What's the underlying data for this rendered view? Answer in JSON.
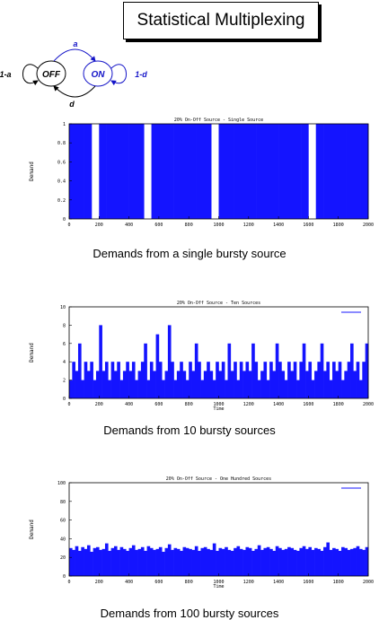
{
  "title": "Statistical Multiplexing",
  "markov": {
    "off_label": "OFF",
    "on_label": "ON",
    "a_label": "a",
    "d_label": "d",
    "self_off_label": "1-a",
    "self_on_label": "1-d",
    "colors": {
      "on_state": "#1414c8",
      "off_state": "#000000"
    }
  },
  "captions": [
    "Demands from a single bursty source",
    "Demands from 10 bursty sources",
    "Demands from 100 bursty sources"
  ],
  "chart_data": [
    {
      "type": "bar",
      "title": "20% On-Off Source - Single Source",
      "ylabel": "Demand",
      "xlabel": "",
      "xlim": [
        0,
        2000
      ],
      "ylim": [
        0,
        1
      ],
      "xticks": [
        "0",
        "200",
        "400",
        "600",
        "800",
        "1000",
        "1200",
        "1400",
        "1600",
        "1800",
        "2000"
      ],
      "yticks": [
        "0",
        "0.2",
        "0.4",
        "0.6",
        "0.8",
        "1"
      ],
      "color": "#1414ff",
      "values_description": "binary 0/1 demand per time slot; mostly 1",
      "values": [
        1,
        1,
        1,
        0,
        1,
        1,
        1,
        1,
        1,
        1,
        0,
        1,
        1,
        1,
        1,
        1,
        1,
        1,
        1,
        0,
        1,
        1,
        1,
        1,
        1,
        1,
        1,
        1,
        1,
        1,
        1,
        1,
        0,
        1,
        1,
        1,
        1,
        1,
        1,
        1
      ]
    },
    {
      "type": "bar",
      "title": "20% On-Off Source - Ten Sources",
      "ylabel": "Demand",
      "xlabel": "Time",
      "xlim": [
        0,
        2000
      ],
      "ylim": [
        0,
        10
      ],
      "xticks": [
        "0",
        "200",
        "400",
        "600",
        "800",
        "1000",
        "1200",
        "1400",
        "1600",
        "1800",
        "2000"
      ],
      "yticks": [
        "0",
        "2",
        "4",
        "6",
        "8",
        "10"
      ],
      "color": "#1414ff",
      "values": [
        2,
        4,
        3,
        6,
        2,
        4,
        3,
        4,
        2,
        3,
        8,
        3,
        4,
        2,
        4,
        3,
        4,
        2,
        3,
        4,
        3,
        4,
        2,
        3,
        4,
        6,
        2,
        4,
        3,
        7,
        4,
        2,
        3,
        8,
        4,
        2,
        3,
        4,
        3,
        2,
        4,
        3,
        6,
        4,
        2,
        3,
        4,
        3,
        2,
        4,
        3,
        4,
        2,
        6,
        3,
        4,
        2,
        4,
        3,
        4,
        3,
        6,
        4,
        2,
        3,
        4,
        2,
        4,
        3,
        6,
        4,
        3,
        2,
        4,
        3,
        4,
        2,
        4,
        6,
        3,
        4,
        2,
        3,
        4,
        6,
        3,
        4,
        2,
        4,
        3,
        4,
        2,
        3,
        4,
        6,
        3,
        4,
        2,
        4,
        6
      ]
    },
    {
      "type": "bar",
      "title": "20% On-Off Source - One Hundred Sources",
      "ylabel": "Demand",
      "xlabel": "Time",
      "xlim": [
        0,
        2000
      ],
      "ylim": [
        0,
        100
      ],
      "xticks": [
        "0",
        "200",
        "400",
        "600",
        "800",
        "1000",
        "1200",
        "1400",
        "1600",
        "1800",
        "2000"
      ],
      "yticks": [
        "0",
        "20",
        "40",
        "60",
        "80",
        "100"
      ],
      "color": "#1414ff",
      "values": [
        30,
        28,
        32,
        27,
        31,
        29,
        33,
        26,
        30,
        31,
        28,
        29,
        35,
        27,
        30,
        32,
        28,
        31,
        29,
        27,
        30,
        33,
        28,
        29,
        31,
        27,
        32,
        30,
        28,
        29,
        31,
        26,
        30,
        34,
        28,
        30,
        29,
        27,
        31,
        30,
        29,
        28,
        32,
        27,
        30,
        31,
        29,
        28,
        35,
        27,
        30,
        29,
        31,
        28,
        27,
        30,
        32,
        29,
        28,
        31,
        30,
        27,
        29,
        33,
        28,
        30,
        31,
        29,
        27,
        32,
        30,
        28,
        29,
        31,
        30,
        28,
        27,
        30,
        32,
        29,
        31,
        28,
        30,
        29,
        27,
        31,
        36,
        28,
        30,
        29,
        27,
        31,
        30,
        28,
        29,
        30,
        32,
        29,
        28,
        31
      ]
    }
  ]
}
